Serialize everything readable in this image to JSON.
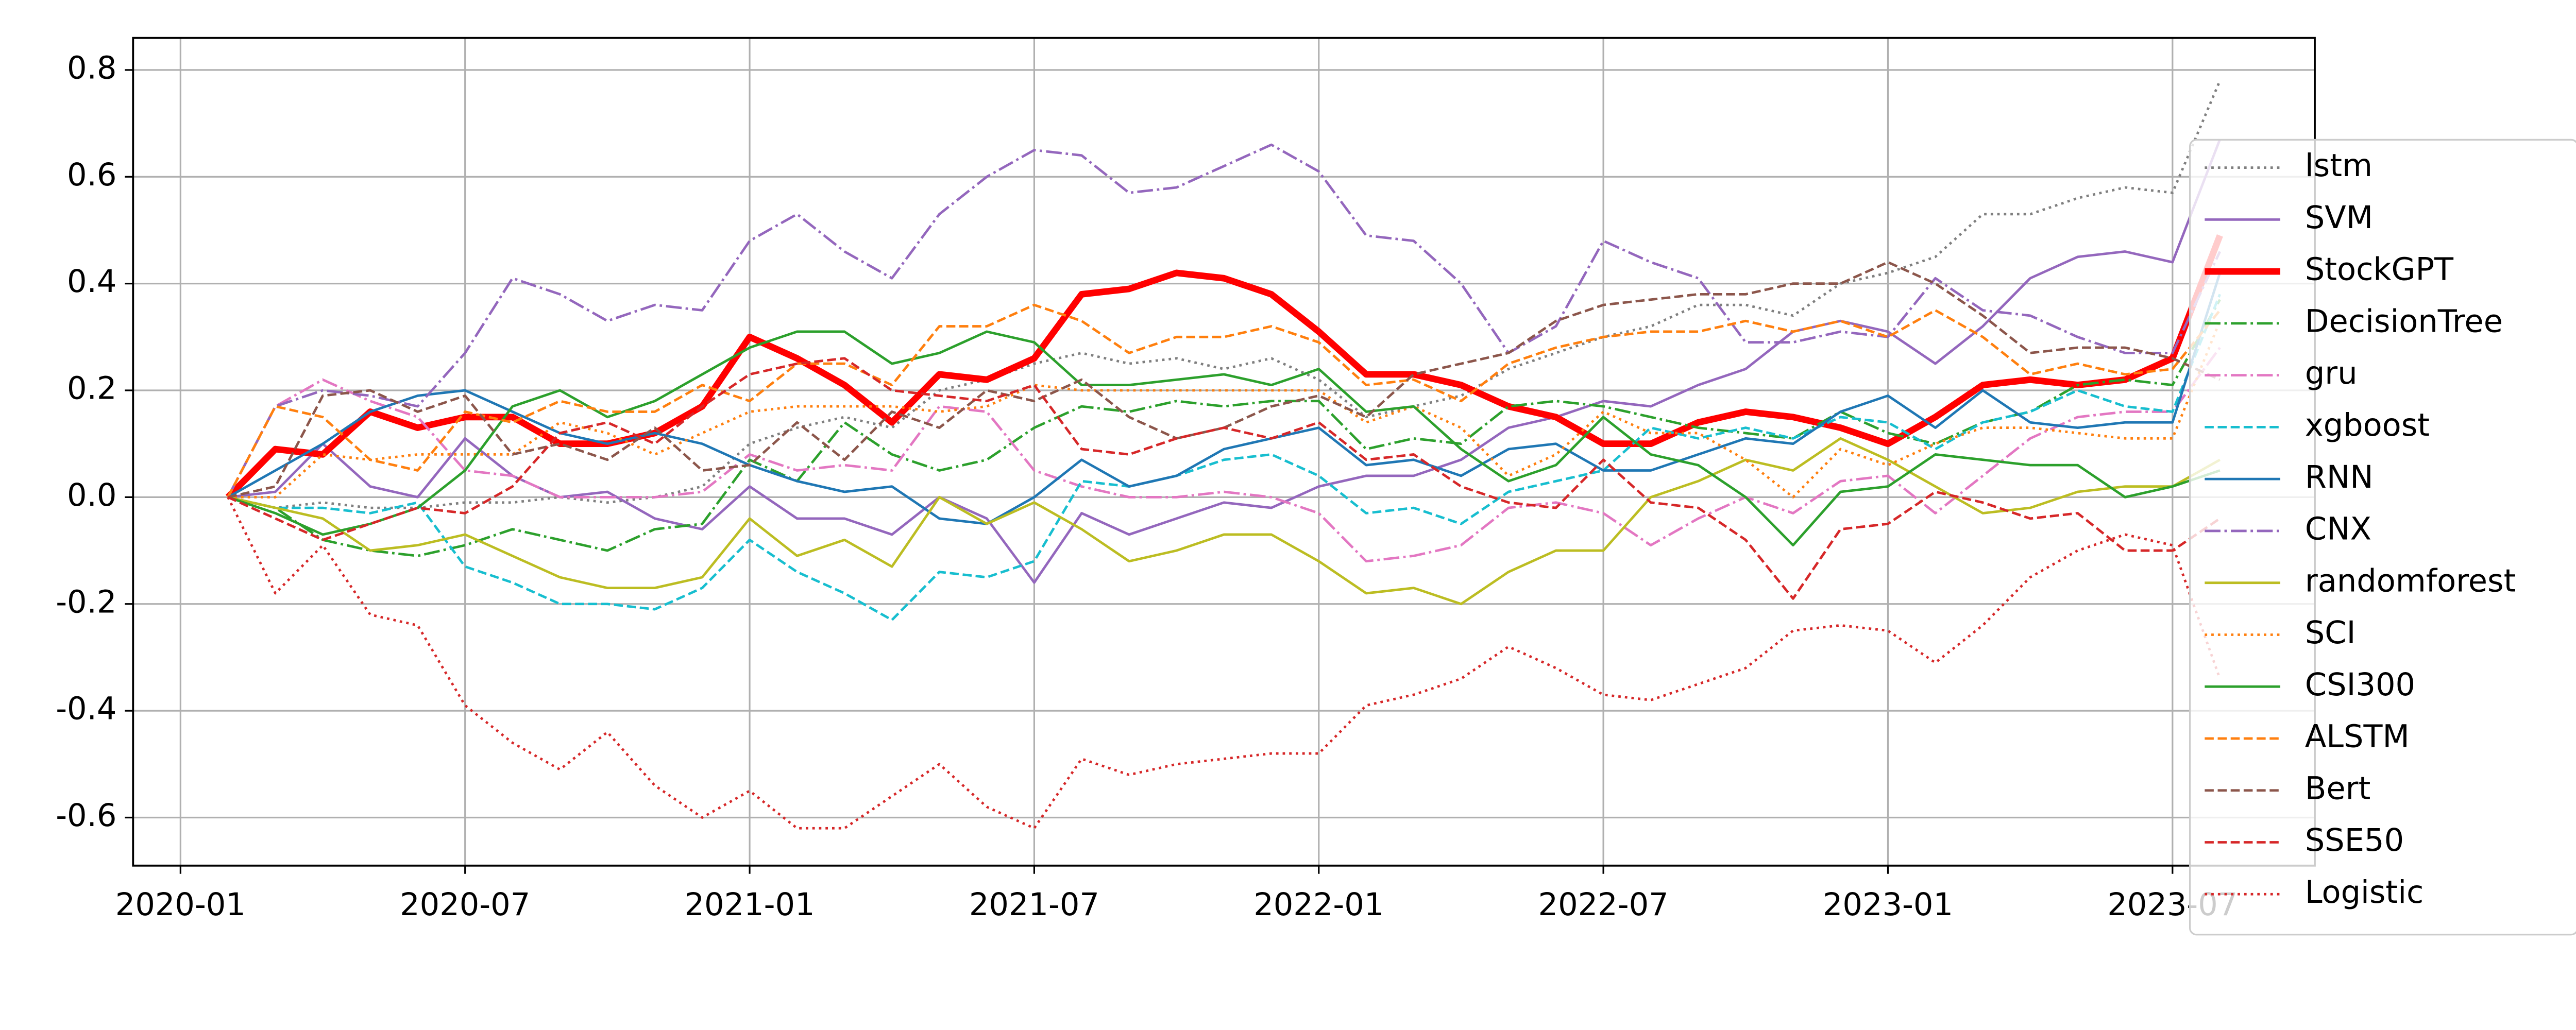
{
  "chart_data": {
    "type": "line",
    "x": [
      "2020-02",
      "2020-03",
      "2020-04",
      "2020-05",
      "2020-06",
      "2020-07",
      "2020-08",
      "2020-09",
      "2020-10",
      "2020-11",
      "2020-12",
      "2021-01",
      "2021-02",
      "2021-03",
      "2021-04",
      "2021-05",
      "2021-06",
      "2021-07",
      "2021-08",
      "2021-09",
      "2021-10",
      "2021-11",
      "2021-12",
      "2022-01",
      "2022-02",
      "2022-03",
      "2022-04",
      "2022-05",
      "2022-06",
      "2022-07",
      "2022-08",
      "2022-09",
      "2022-10",
      "2022-11",
      "2022-12",
      "2023-01",
      "2023-02",
      "2023-03",
      "2023-04",
      "2023-05",
      "2023-06",
      "2023-07",
      "2023-08"
    ],
    "xlim": [
      "2019-12",
      "2023-10"
    ],
    "xticks": [
      "2020-01",
      "2020-07",
      "2021-01",
      "2021-07",
      "2022-01",
      "2022-07",
      "2023-01",
      "2023-07"
    ],
    "ylim": [
      -0.69,
      0.86
    ],
    "yticks": [
      -0.6,
      -0.4,
      -0.2,
      {
        "value": 0,
        "label": "0.0"
      },
      0.2,
      0.4,
      0.6,
      0.8
    ],
    "grid": true,
    "legend": "right",
    "series": [
      {
        "name": "lstm",
        "color": "#7f7f7f",
        "style": "dotted",
        "values": [
          0,
          -0.02,
          -0.01,
          -0.02,
          -0.02,
          -0.01,
          -0.01,
          0,
          -0.01,
          0,
          0.02,
          0.1,
          0.13,
          0.15,
          0.13,
          0.2,
          0.22,
          0.25,
          0.27,
          0.25,
          0.26,
          0.24,
          0.26,
          0.22,
          0.15,
          0.17,
          0.19,
          0.24,
          0.27,
          0.3,
          0.32,
          0.36,
          0.36,
          0.34,
          0.4,
          0.42,
          0.45,
          0.53,
          0.53,
          0.56,
          0.58,
          0.57,
          0.78
        ]
      },
      {
        "name": "SVM",
        "color": "#9467bd",
        "style": "solid",
        "values": [
          0,
          0.01,
          0.1,
          0.02,
          0,
          0.11,
          0.04,
          0,
          0.01,
          -0.04,
          -0.06,
          0.02,
          -0.04,
          -0.04,
          -0.07,
          0,
          -0.04,
          -0.16,
          -0.03,
          -0.07,
          -0.04,
          -0.01,
          -0.02,
          0.02,
          0.04,
          0.04,
          0.07,
          0.13,
          0.15,
          0.18,
          0.17,
          0.21,
          0.24,
          0.31,
          0.33,
          0.31,
          0.25,
          0.32,
          0.41,
          0.45,
          0.46,
          0.44,
          0.67
        ]
      },
      {
        "name": "StockGPT",
        "color": "#ff0000",
        "style": "bold",
        "values": [
          0,
          0.09,
          0.08,
          0.16,
          0.13,
          0.15,
          0.15,
          0.1,
          0.1,
          0.12,
          0.17,
          0.3,
          0.26,
          0.21,
          0.14,
          0.23,
          0.22,
          0.26,
          0.38,
          0.39,
          0.42,
          0.41,
          0.38,
          0.31,
          0.23,
          0.23,
          0.21,
          0.17,
          0.15,
          0.1,
          0.1,
          0.14,
          0.16,
          0.15,
          0.13,
          0.1,
          0.15,
          0.21,
          0.22,
          0.21,
          0.22,
          0.26,
          0.49
        ]
      },
      {
        "name": "DecisionTree",
        "color": "#2ca02c",
        "style": "dashdot",
        "values": [
          0,
          -0.02,
          -0.08,
          -0.1,
          -0.11,
          -0.09,
          -0.06,
          -0.08,
          -0.1,
          -0.06,
          -0.05,
          0.07,
          0.03,
          0.14,
          0.08,
          0.05,
          0.07,
          0.13,
          0.17,
          0.16,
          0.18,
          0.17,
          0.18,
          0.18,
          0.09,
          0.11,
          0.1,
          0.17,
          0.18,
          0.17,
          0.15,
          0.13,
          0.12,
          0.11,
          0.16,
          0.12,
          0.1,
          0.14,
          0.16,
          0.21,
          0.22,
          0.21,
          0.37
        ]
      },
      {
        "name": "gru",
        "color": "#e377c2",
        "style": "dashdot",
        "values": [
          0,
          0.17,
          0.22,
          0.18,
          0.15,
          0.05,
          0.04,
          0,
          0,
          0,
          0.01,
          0.08,
          0.05,
          0.06,
          0.05,
          0.17,
          0.16,
          0.05,
          0.02,
          0,
          0,
          0.01,
          0,
          -0.03,
          -0.12,
          -0.11,
          -0.09,
          -0.02,
          -0.01,
          -0.03,
          -0.09,
          -0.04,
          0,
          -0.03,
          0.03,
          0.04,
          -0.03,
          0.04,
          0.11,
          0.15,
          0.16,
          0.16,
          0.28
        ]
      },
      {
        "name": "xgboost",
        "color": "#17becf",
        "style": "dashed",
        "values": [
          0,
          -0.02,
          -0.02,
          -0.03,
          -0.01,
          -0.13,
          -0.16,
          -0.2,
          -0.2,
          -0.21,
          -0.17,
          -0.08,
          -0.14,
          -0.18,
          -0.23,
          -0.14,
          -0.15,
          -0.12,
          0.03,
          0.02,
          0.04,
          0.07,
          0.08,
          0.04,
          -0.03,
          -0.02,
          -0.05,
          0.01,
          0.03,
          0.05,
          0.13,
          0.11,
          0.13,
          0.11,
          0.15,
          0.14,
          0.09,
          0.14,
          0.16,
          0.2,
          0.17,
          0.16,
          0.38
        ]
      },
      {
        "name": "RNN",
        "color": "#1f77b4",
        "style": "solid",
        "values": [
          0,
          0.05,
          0.1,
          0.16,
          0.19,
          0.2,
          0.16,
          0.12,
          0.1,
          0.12,
          0.1,
          0.06,
          0.03,
          0.01,
          0.02,
          -0.04,
          -0.05,
          0,
          0.07,
          0.02,
          0.04,
          0.09,
          0.11,
          0.13,
          0.06,
          0.07,
          0.04,
          0.09,
          0.1,
          0.05,
          0.05,
          0.08,
          0.11,
          0.1,
          0.16,
          0.19,
          0.13,
          0.2,
          0.14,
          0.13,
          0.14,
          0.14,
          0.42
        ]
      },
      {
        "name": "CNX",
        "color": "#9467bd",
        "style": "dashdot",
        "values": [
          0,
          0.17,
          0.2,
          0.19,
          0.17,
          0.27,
          0.41,
          0.38,
          0.33,
          0.36,
          0.35,
          0.48,
          0.53,
          0.46,
          0.41,
          0.53,
          0.6,
          0.65,
          0.64,
          0.57,
          0.58,
          0.62,
          0.66,
          0.61,
          0.49,
          0.48,
          0.4,
          0.27,
          0.32,
          0.48,
          0.44,
          0.41,
          0.29,
          0.29,
          0.31,
          0.3,
          0.41,
          0.35,
          0.34,
          0.3,
          0.27,
          0.27,
          0.46
        ]
      },
      {
        "name": "randomforest",
        "color": "#bcbd22",
        "style": "solid",
        "values": [
          0,
          -0.02,
          -0.04,
          -0.1,
          -0.09,
          -0.07,
          -0.11,
          -0.15,
          -0.17,
          -0.17,
          -0.15,
          -0.04,
          -0.11,
          -0.08,
          -0.13,
          0,
          -0.05,
          -0.01,
          -0.06,
          -0.12,
          -0.1,
          -0.07,
          -0.07,
          -0.12,
          -0.18,
          -0.17,
          -0.2,
          -0.14,
          -0.1,
          -0.1,
          0,
          0.03,
          0.07,
          0.05,
          0.11,
          0.07,
          0.02,
          -0.03,
          -0.02,
          0.01,
          0.02,
          0.02,
          0.07
        ]
      },
      {
        "name": "SCI",
        "color": "#ff7f0e",
        "style": "dotted",
        "values": [
          0,
          0,
          0.08,
          0.07,
          0.08,
          0.08,
          0.08,
          0.14,
          0.12,
          0.08,
          0.12,
          0.16,
          0.17,
          0.17,
          0.17,
          0.16,
          0.17,
          0.21,
          0.2,
          0.2,
          0.2,
          0.2,
          0.2,
          0.2,
          0.14,
          0.17,
          0.13,
          0.04,
          0.08,
          0.16,
          0.12,
          0.12,
          0.07,
          0,
          0.09,
          0.06,
          0.1,
          0.13,
          0.13,
          0.12,
          0.11,
          0.11,
          0.33
        ]
      },
      {
        "name": "CSI300",
        "color": "#2ca02c",
        "style": "solid",
        "values": [
          0,
          -0.03,
          -0.07,
          -0.05,
          -0.02,
          0.05,
          0.17,
          0.2,
          0.15,
          0.18,
          0.23,
          0.28,
          0.31,
          0.31,
          0.25,
          0.27,
          0.31,
          0.29,
          0.21,
          0.21,
          0.22,
          0.23,
          0.21,
          0.24,
          0.16,
          0.17,
          0.09,
          0.03,
          0.06,
          0.15,
          0.08,
          0.06,
          0,
          -0.09,
          0.01,
          0.02,
          0.08,
          0.07,
          0.06,
          0.06,
          0,
          0.02,
          0.05
        ]
      },
      {
        "name": "ALSTM",
        "color": "#ff7f0e",
        "style": "dashed",
        "values": [
          0,
          0.17,
          0.15,
          0.07,
          0.05,
          0.16,
          0.14,
          0.18,
          0.16,
          0.16,
          0.21,
          0.18,
          0.25,
          0.25,
          0.21,
          0.32,
          0.32,
          0.36,
          0.33,
          0.27,
          0.3,
          0.3,
          0.32,
          0.29,
          0.21,
          0.22,
          0.18,
          0.25,
          0.28,
          0.3,
          0.31,
          0.31,
          0.33,
          0.31,
          0.33,
          0.3,
          0.35,
          0.3,
          0.23,
          0.25,
          0.23,
          0.24,
          0.35
        ]
      },
      {
        "name": "Bert",
        "color": "#8c564b",
        "style": "dashed",
        "values": [
          0,
          0.02,
          0.19,
          0.2,
          0.16,
          0.19,
          0.08,
          0.1,
          0.07,
          0.13,
          0.05,
          0.06,
          0.14,
          0.07,
          0.16,
          0.13,
          0.2,
          0.18,
          0.22,
          0.15,
          0.11,
          0.13,
          0.17,
          0.19,
          0.15,
          0.23,
          0.25,
          0.27,
          0.33,
          0.36,
          0.37,
          0.38,
          0.38,
          0.4,
          0.4,
          0.44,
          0.4,
          0.34,
          0.27,
          0.28,
          0.28,
          0.26,
          0.22
        ]
      },
      {
        "name": "SSE50",
        "color": "#d62728",
        "style": "dashed",
        "values": [
          0,
          -0.04,
          -0.08,
          -0.05,
          -0.02,
          -0.03,
          0.02,
          0.12,
          0.14,
          0.1,
          0.17,
          0.23,
          0.25,
          0.26,
          0.2,
          0.19,
          0.18,
          0.21,
          0.09,
          0.08,
          0.11,
          0.13,
          0.11,
          0.14,
          0.07,
          0.08,
          0.02,
          -0.01,
          -0.02,
          0.07,
          -0.01,
          -0.02,
          -0.08,
          -0.19,
          -0.06,
          -0.05,
          0.01,
          -0.01,
          -0.04,
          -0.03,
          -0.1,
          -0.1,
          -0.04
        ]
      },
      {
        "name": "Logistic",
        "color": "#d62728",
        "style": "dotted",
        "values": [
          0,
          -0.18,
          -0.09,
          -0.22,
          -0.24,
          -0.39,
          -0.46,
          -0.51,
          -0.44,
          -0.54,
          -0.6,
          -0.55,
          -0.62,
          -0.62,
          -0.56,
          -0.5,
          -0.58,
          -0.62,
          -0.49,
          -0.52,
          -0.5,
          -0.49,
          -0.48,
          -0.48,
          -0.39,
          -0.37,
          -0.34,
          -0.28,
          -0.32,
          -0.37,
          -0.38,
          -0.35,
          -0.32,
          -0.25,
          -0.24,
          -0.25,
          -0.31,
          -0.24,
          -0.15,
          -0.1,
          -0.07,
          -0.09,
          -0.34
        ]
      }
    ]
  }
}
